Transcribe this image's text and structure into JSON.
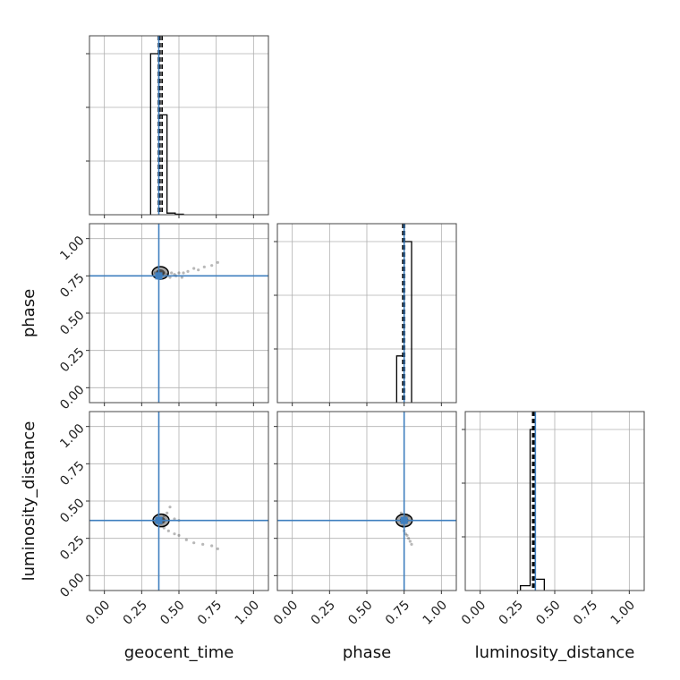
{
  "chart_data": {
    "type": "corner",
    "parameters": [
      "geocent_time",
      "phase",
      "luminosity_distance"
    ],
    "labels": {
      "geocent_time": "geocent_time",
      "phase": "phase",
      "luminosity_distance": "luminosity_distance"
    },
    "axis_range": [
      -0.1,
      1.1
    ],
    "ticks": [
      0.0,
      0.25,
      0.5,
      0.75,
      1.0
    ],
    "tick_labels": [
      "0.00",
      "0.25",
      "0.50",
      "0.75",
      "1.00"
    ],
    "grid": true,
    "truth_color": "#3f7fbf",
    "truths": {
      "geocent_time": 0.365,
      "phase": 0.75,
      "luminosity_distance": 0.37
    },
    "histograms": {
      "geocent_time": {
        "bins": [
          [
            0.31,
            0.365
          ],
          [
            0.365,
            0.42
          ],
          [
            0.42,
            0.475
          ],
          [
            0.475,
            0.53
          ]
        ],
        "heights": [
          1.0,
          0.62,
          0.01,
          0.003
        ],
        "quantile_lines": [
          0.362,
          0.373,
          0.387
        ]
      },
      "phase": {
        "bins": [
          [
            0.7,
            0.75
          ],
          [
            0.75,
            0.8
          ]
        ],
        "heights": [
          0.29,
          1.0
        ],
        "quantile_lines": [
          0.741,
          0.747,
          0.753
        ]
      },
      "luminosity_distance": {
        "bins": [
          [
            0.27,
            0.335
          ],
          [
            0.335,
            0.37
          ],
          [
            0.37,
            0.43
          ]
        ],
        "heights": [
          0.03,
          1.0,
          0.07
        ],
        "quantile_lines": [
          0.352,
          0.357,
          0.362
        ]
      }
    },
    "scatter": {
      "phase_vs_geocent_time": [
        [
          0.34,
          0.77
        ],
        [
          0.36,
          0.78
        ],
        [
          0.38,
          0.76
        ],
        [
          0.4,
          0.77
        ],
        [
          0.42,
          0.76
        ],
        [
          0.45,
          0.77
        ],
        [
          0.47,
          0.76
        ],
        [
          0.5,
          0.77
        ],
        [
          0.53,
          0.77
        ],
        [
          0.56,
          0.78
        ],
        [
          0.6,
          0.8
        ],
        [
          0.63,
          0.79
        ],
        [
          0.67,
          0.81
        ],
        [
          0.72,
          0.82
        ],
        [
          0.76,
          0.84
        ],
        [
          0.44,
          0.74
        ],
        [
          0.48,
          0.75
        ],
        [
          0.52,
          0.74
        ]
      ],
      "luminosity_distance_vs_geocent_time": [
        [
          0.34,
          0.36
        ],
        [
          0.36,
          0.38
        ],
        [
          0.38,
          0.35
        ],
        [
          0.4,
          0.4
        ],
        [
          0.42,
          0.42
        ],
        [
          0.44,
          0.46
        ],
        [
          0.4,
          0.32
        ],
        [
          0.43,
          0.3
        ],
        [
          0.47,
          0.28
        ],
        [
          0.5,
          0.27
        ],
        [
          0.55,
          0.24
        ],
        [
          0.6,
          0.22
        ],
        [
          0.66,
          0.21
        ],
        [
          0.72,
          0.2
        ],
        [
          0.76,
          0.18
        ],
        [
          0.47,
          0.38
        ],
        [
          0.5,
          0.37
        ]
      ],
      "luminosity_distance_vs_phase": [
        [
          0.73,
          0.42
        ],
        [
          0.74,
          0.33
        ],
        [
          0.75,
          0.3
        ],
        [
          0.76,
          0.28
        ],
        [
          0.77,
          0.27
        ],
        [
          0.78,
          0.25
        ],
        [
          0.79,
          0.23
        ],
        [
          0.8,
          0.21
        ],
        [
          0.78,
          0.4
        ],
        [
          0.76,
          0.4
        ]
      ]
    },
    "contour_centers": {
      "phase_vs_geocent_time": [
        0.375,
        0.77
      ],
      "luminosity_distance_vs_geocent_time": [
        0.38,
        0.37
      ],
      "luminosity_distance_vs_phase": [
        0.75,
        0.37
      ]
    }
  }
}
